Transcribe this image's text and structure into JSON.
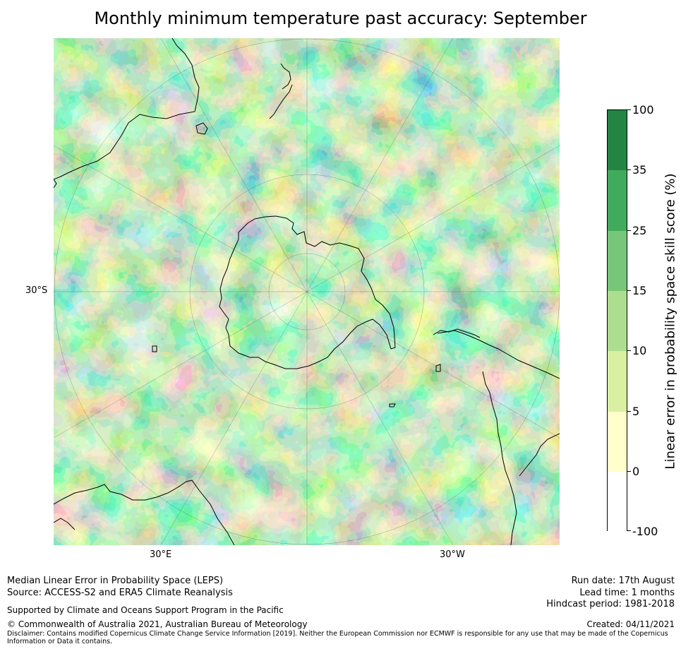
{
  "title": "Monthly minimum temperature past accuracy: September",
  "map": {
    "projection": "south polar stereographic",
    "lat_label": "30°S",
    "lon_labels": [
      "30°E",
      "30°W"
    ]
  },
  "colorbar": {
    "title": "Linear error in probability space skill score (%)",
    "ticks": [
      "100",
      "35",
      "25",
      "15",
      "10",
      "5",
      "0",
      "-100"
    ],
    "colors": [
      "#238443",
      "#41ab5d",
      "#78c679",
      "#addd8e",
      "#d9f0a3",
      "#ffffcc",
      "#ffffff"
    ]
  },
  "footer": {
    "line1": "Median Linear Error in Probability Space (LEPS)",
    "line2": "Source: ACCESS-S2 and ERA5 Climate Reanalysis",
    "support": "Supported by Climate and Oceans Support Program in the Pacific",
    "copyright": "© Commonwealth of Australia 2021, Australian Bureau of Meteorology",
    "disclaimer": "Disclaimer: Contains modified Copernicus Climate Change Service Information [2019]. Neither the European Commission nor ECMWF is responsible for any use that may be made of the Copernicus Information or Data it contains.",
    "run_date": "Run date: 17th August",
    "lead_time": "Lead time: 1 months",
    "hindcast": "Hindcast period: 1981-2018",
    "created": "Created: 04/11/2021"
  }
}
